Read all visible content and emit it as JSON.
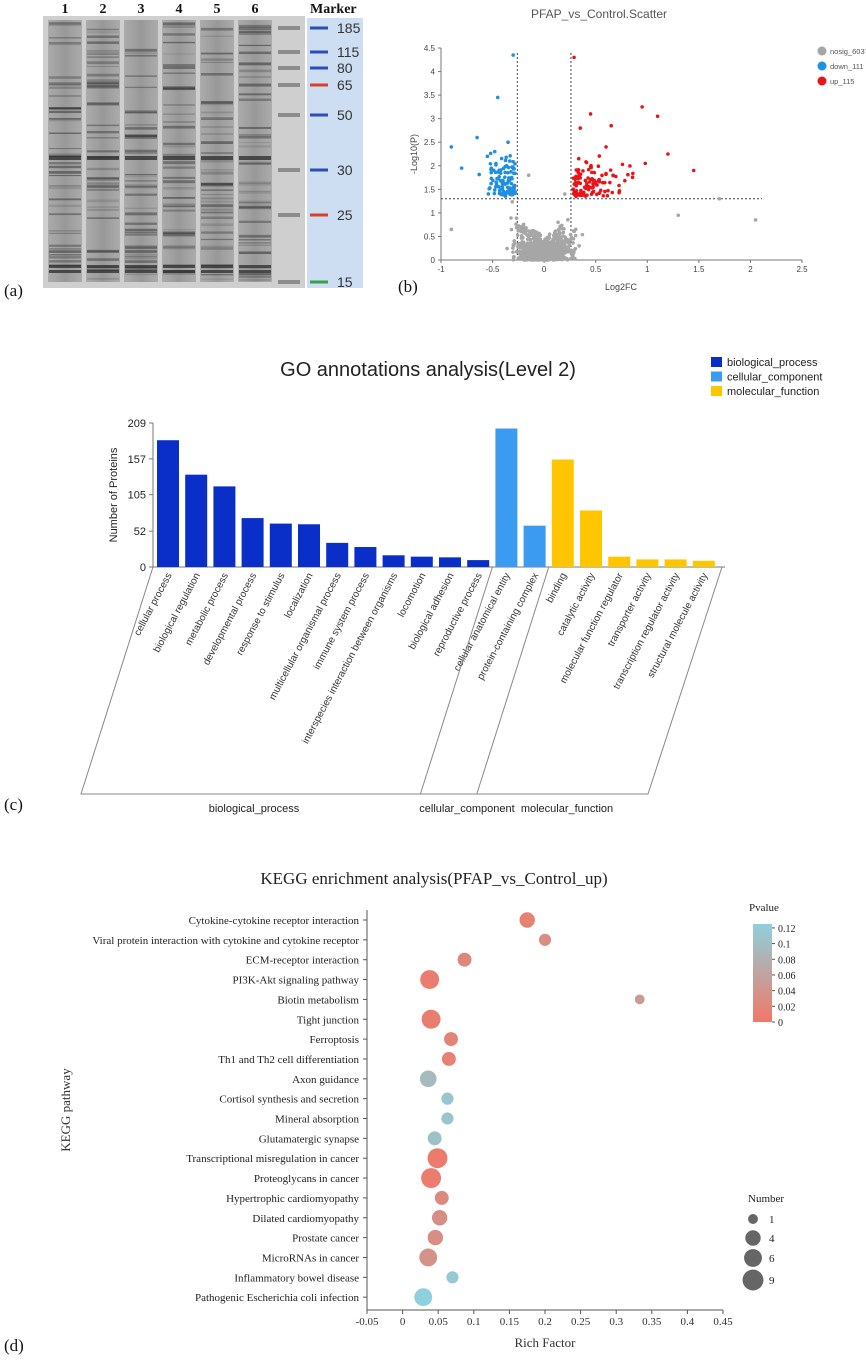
{
  "panel_labels": [
    "(a)",
    "(b)",
    "(c)",
    "(d)"
  ],
  "gel": {
    "lanes": [
      "1",
      "2",
      "3",
      "4",
      "5",
      "6"
    ],
    "marker_title": "Marker",
    "marker_kda": [
      "185",
      "115",
      "80",
      "65",
      "50",
      "30",
      "25",
      "15"
    ],
    "marker_colors": [
      "blue",
      "blue",
      "blue",
      "red",
      "blue",
      "blue",
      "red",
      "green"
    ]
  },
  "colors": {
    "nosig": "#a6a6a6",
    "down": "#1f8fe0",
    "up": "#e8141a",
    "bp": "#0a2fc8",
    "cc": "#3b9bf0",
    "mf": "#ffc600",
    "p_low": "#f07868",
    "p_high": "#8ed0dc"
  },
  "chart_data": [
    {
      "type": "scatter",
      "title": "PFAP_vs_Control.Scatter",
      "xlabel": "Log2FC",
      "ylabel": "-Log10(P)",
      "xlim": [
        -1,
        2.5
      ],
      "ylim": [
        0,
        4.5
      ],
      "xticks": [
        "-1",
        "-0.5",
        "0",
        "0.5",
        "1",
        "1.5",
        "2",
        "2.5"
      ],
      "yticks": [
        "0",
        "0.5",
        "1",
        "1.5",
        "2",
        "2.5",
        "3",
        "3.5",
        "4",
        "4.5"
      ],
      "thresholds": {
        "log2fc": [
          -0.26,
          0.26
        ],
        "neglog10p": 1.3
      },
      "legend": [
        {
          "name": "nosig_6037",
          "count": 6037
        },
        {
          "name": "down_111",
          "count": 111
        },
        {
          "name": "up_115",
          "count": 115
        }
      ],
      "highlighted_points": {
        "up": [
          [
            0.29,
            4.3
          ],
          [
            0.95,
            3.25
          ],
          [
            1.1,
            3.05
          ],
          [
            0.65,
            2.85
          ],
          [
            0.45,
            3.1
          ],
          [
            1.2,
            2.25
          ],
          [
            1.45,
            1.9
          ],
          [
            0.98,
            2.05
          ],
          [
            0.6,
            2.4
          ],
          [
            0.35,
            2.8
          ]
        ],
        "down": [
          [
            -0.3,
            4.35
          ],
          [
            -0.9,
            2.4
          ],
          [
            -0.65,
            2.6
          ],
          [
            -0.45,
            3.45
          ],
          [
            -0.8,
            1.95
          ],
          [
            -0.55,
            2.2
          ],
          [
            -0.35,
            2.5
          ]
        ],
        "nosig": [
          [
            2.05,
            0.85
          ],
          [
            1.7,
            1.3
          ],
          [
            1.3,
            0.95
          ],
          [
            -0.9,
            0.65
          ],
          [
            0.2,
            1.4
          ],
          [
            -0.15,
            1.8
          ]
        ]
      }
    },
    {
      "type": "bar",
      "title": "GO annotations analysis(Level 2)",
      "ylabel": "Number of Proteins",
      "yticks": [
        "0",
        "52",
        "105",
        "157",
        "209"
      ],
      "ylim": [
        0,
        209
      ],
      "legend": [
        "biological_process",
        "cellular_component",
        "molecular_function"
      ],
      "categories": [
        "cellular process",
        "biological regulation",
        "metabolic process",
        "developmental process",
        "response to stimulus",
        "localization",
        "multicellular organismal process",
        "immune system process",
        "interspecies interaction between organisms",
        "locomotion",
        "biological adhesion",
        "reproductive process",
        "cellular anatomical entity",
        "protein-containing complex",
        "binding",
        "catalytic activity",
        "molecular function regulator",
        "transporter activity",
        "transcription regulator activity",
        "structural molecule activity"
      ],
      "groups": [
        "biological_process",
        "biological_process",
        "biological_process",
        "biological_process",
        "biological_process",
        "biological_process",
        "biological_process",
        "biological_process",
        "biological_process",
        "biological_process",
        "biological_process",
        "biological_process",
        "cellular_component",
        "cellular_component",
        "molecular_function",
        "molecular_function",
        "molecular_function",
        "molecular_function",
        "molecular_function",
        "molecular_function"
      ],
      "values": [
        184,
        134,
        117,
        71,
        63,
        62,
        35,
        29,
        17,
        15,
        14,
        10,
        201,
        60,
        156,
        82,
        15,
        11,
        11,
        9
      ],
      "group_labels": [
        "biological_process",
        "cellular_component",
        "molecular_function"
      ]
    },
    {
      "type": "scatter",
      "title": "KEGG enrichment analysis(PFAP_vs_Control_up)",
      "xlabel": "Rich Factor",
      "ylabel": "KEGG pathway",
      "xlim": [
        -0.05,
        0.45
      ],
      "xticks": [
        "-0.05",
        "0",
        "0.05",
        "0.1",
        "0.15",
        "0.2",
        "0.25",
        "0.3",
        "0.35",
        "0.4",
        "0.45"
      ],
      "color_legend_title": "Pvalue",
      "color_ticks": [
        "0.12",
        "0.1",
        "0.08",
        "0.06",
        "0.04",
        "0.02",
        "0"
      ],
      "size_legend_title": "Number",
      "size_ticks": [
        "1",
        "4",
        "6",
        "9"
      ],
      "pathways": [
        "Cytokine-cytokine receptor interaction",
        "Viral protein interaction with cytokine and cytokine receptor",
        "ECM-receptor interaction",
        "PI3K-Akt signaling pathway",
        "Biotin metabolism",
        "Tight junction",
        "Ferroptosis",
        "Th1 and Th2 cell differentiation",
        "Axon guidance",
        "Cortisol synthesis and secretion",
        "Mineral absorption",
        "Glutamatergic synapse",
        "Transcriptional misregulation in cancer",
        "Proteoglycans in cancer",
        "Hypertrophic cardiomyopathy",
        "Dilated cardiomyopathy",
        "Prostate cancer",
        "MicroRNAs in cancer",
        "Inflammatory bowel disease",
        "Pathogenic Escherichia coli infection"
      ],
      "rich_factor": [
        0.175,
        0.2,
        0.087,
        0.038,
        0.333,
        0.04,
        0.068,
        0.065,
        0.036,
        0.063,
        0.063,
        0.045,
        0.049,
        0.04,
        0.055,
        0.052,
        0.046,
        0.036,
        0.07,
        0.029
      ],
      "number": [
        4,
        2,
        3,
        7,
        1,
        7,
        3,
        3,
        5,
        2,
        2,
        3,
        8,
        8,
        3,
        4,
        4,
        6,
        2,
        6
      ],
      "pvalue": [
        0.012,
        0.028,
        0.02,
        0.008,
        0.05,
        0.008,
        0.018,
        0.012,
        0.09,
        0.105,
        0.105,
        0.1,
        0.004,
        0.006,
        0.025,
        0.032,
        0.03,
        0.035,
        0.11,
        0.12
      ]
    }
  ]
}
